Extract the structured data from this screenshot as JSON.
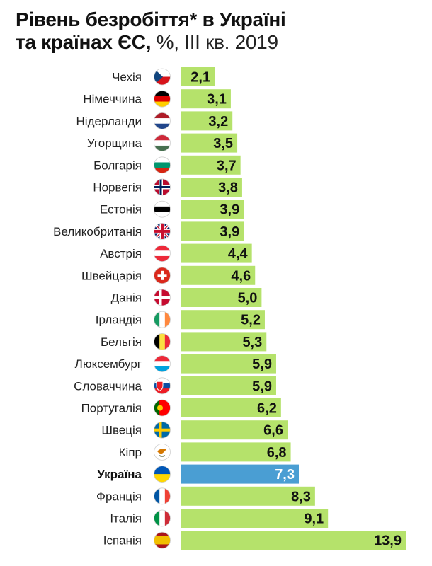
{
  "title": {
    "line1": "Рівень безробіття* в Україні",
    "line2_bold": "та країнах ЄС,",
    "line2_light": " %, III кв. 2019"
  },
  "colors": {
    "bar": "#b5e26b",
    "bar_highlight": "#4a9ed3",
    "separator": "#ffffff"
  },
  "chart_data": {
    "type": "bar",
    "orientation": "horizontal",
    "title": "Рівень безробіття* в Україні та країнах ЄС, %, III кв. 2019",
    "xlabel": "",
    "ylabel": "",
    "xlim": [
      0,
      13.9
    ],
    "grid": false,
    "highlight": "Україна",
    "categories": [
      "Чехія",
      "Німеччина",
      "Нідерланди",
      "Угорщина",
      "Болгарія",
      "Норвегія",
      "Естонія",
      "Великобританія",
      "Австрія",
      "Швейцарія",
      "Данія",
      "Ірландія",
      "Бельгія",
      "Люксембург",
      "Словаччина",
      "Португалія",
      "Швеція",
      "Кіпр",
      "Україна",
      "Франція",
      "Італія",
      "Іспанія"
    ],
    "values": [
      2.1,
      3.1,
      3.2,
      3.5,
      3.7,
      3.8,
      3.9,
      3.9,
      4.4,
      4.6,
      5.0,
      5.2,
      5.3,
      5.9,
      5.9,
      6.2,
      6.6,
      6.8,
      7.3,
      8.3,
      9.1,
      13.9
    ],
    "value_labels": [
      "2,1",
      "3,1",
      "3,2",
      "3,5",
      "3,7",
      "3,8",
      "3,9",
      "3,9",
      "4,4",
      "4,6",
      "5,0",
      "5,2",
      "5,3",
      "5,9",
      "5,9",
      "6,2",
      "6,6",
      "6,8",
      "7,3",
      "8,3",
      "9,1",
      "13,9"
    ],
    "flag_icons": [
      "czech-flag-icon",
      "germany-flag-icon",
      "netherlands-flag-icon",
      "hungary-flag-icon",
      "bulgaria-flag-icon",
      "norway-flag-icon",
      "estonia-flag-icon",
      "uk-flag-icon",
      "austria-flag-icon",
      "switzerland-flag-icon",
      "denmark-flag-icon",
      "ireland-flag-icon",
      "belgium-flag-icon",
      "luxembourg-flag-icon",
      "slovakia-flag-icon",
      "portugal-flag-icon",
      "sweden-flag-icon",
      "cyprus-flag-icon",
      "ukraine-flag-icon",
      "france-flag-icon",
      "italy-flag-icon",
      "spain-flag-icon"
    ]
  }
}
